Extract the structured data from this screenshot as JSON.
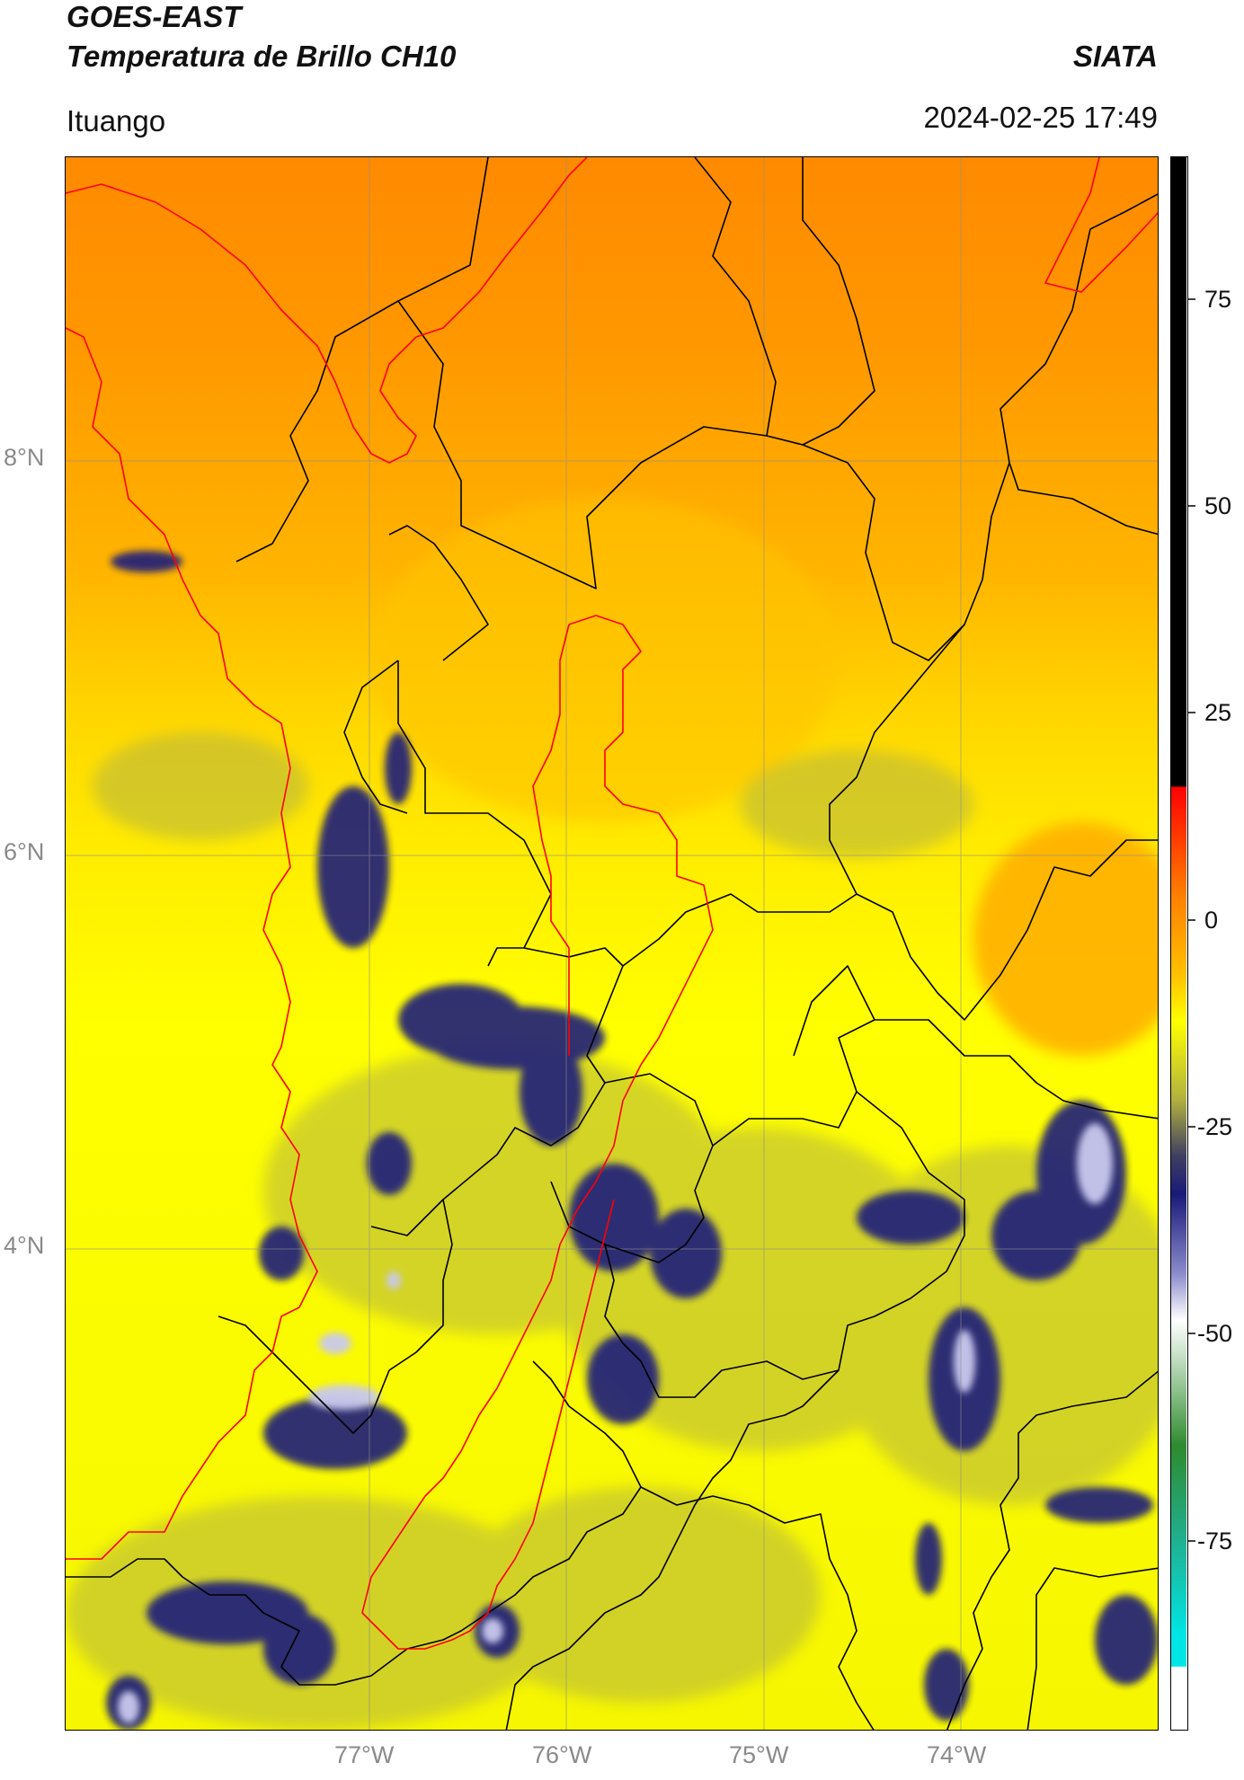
{
  "header": {
    "title_line1": "GOES-EAST",
    "title_line2": "Temperatura de Brillo CH10",
    "brand": "SIATA",
    "location": "Ituango",
    "timestamp": "2024-02-25 17:49"
  },
  "map": {
    "lat_labels": [
      "8°N",
      "6°N",
      "4°N"
    ],
    "lon_labels": [
      "77°W",
      "76°W",
      "75°W",
      "74°W"
    ],
    "colors": {
      "warm_orange": "#ff8c00",
      "orange": "#ffa500",
      "yellow": "#ffff00",
      "olive": "#a8a850",
      "navy": "#1a1a7a",
      "lavender": "#c8c8ee",
      "boundary_black": "#000000",
      "boundary_red": "#ff0000"
    }
  },
  "colorbar": {
    "tick_labels": [
      "75",
      "50",
      "25",
      "0",
      "-25",
      "-50",
      "-75"
    ],
    "colors_top_to_bottom": [
      "#000000",
      "#ff0000",
      "#ff8c00",
      "#ffff00",
      "#8a8a50",
      "#1a1a7a",
      "#ffffff",
      "#2e8b2e",
      "#00e5e5",
      "#ffffff"
    ]
  }
}
